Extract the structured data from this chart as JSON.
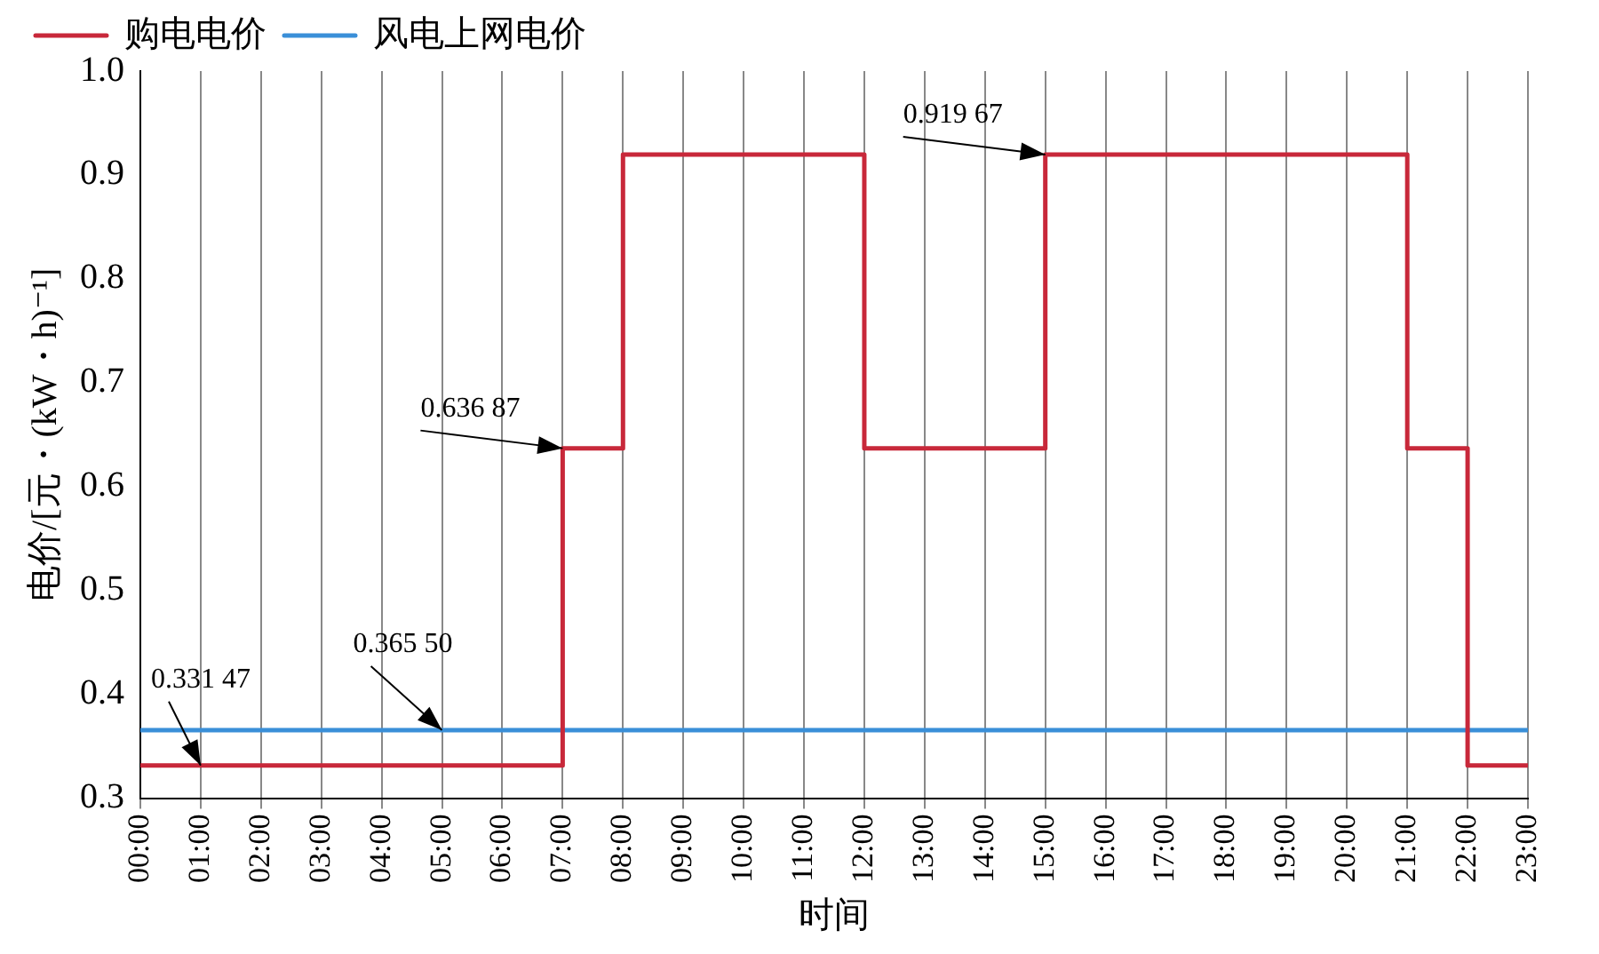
{
  "chart_data": {
    "type": "step",
    "xlabel": "时间",
    "ylabel": "电价/[元・(kW・h)⁻¹]",
    "categories": [
      "00:00",
      "01:00",
      "02:00",
      "03:00",
      "04:00",
      "05:00",
      "06:00",
      "07:00",
      "08:00",
      "09:00",
      "10:00",
      "11:00",
      "12:00",
      "13:00",
      "14:00",
      "15:00",
      "16:00",
      "17:00",
      "18:00",
      "19:00",
      "20:00",
      "21:00",
      "22:00",
      "23:00"
    ],
    "series": [
      {
        "name": "购电电价",
        "color": "#c8283a",
        "values": [
          0.33147,
          0.33147,
          0.33147,
          0.33147,
          0.33147,
          0.33147,
          0.33147,
          0.63687,
          0.91967,
          0.91967,
          0.91967,
          0.91967,
          0.63687,
          0.63687,
          0.63687,
          0.91967,
          0.91967,
          0.91967,
          0.91967,
          0.91967,
          0.91967,
          0.63687,
          0.33147,
          0.33147
        ]
      },
      {
        "name": "风电上网电价",
        "color": "#3a8fd8",
        "values": [
          0.3655,
          0.3655,
          0.3655,
          0.3655,
          0.3655,
          0.3655,
          0.3655,
          0.3655,
          0.3655,
          0.3655,
          0.3655,
          0.3655,
          0.3655,
          0.3655,
          0.3655,
          0.3655,
          0.3655,
          0.3655,
          0.3655,
          0.3655,
          0.3655,
          0.3655,
          0.3655,
          0.3655
        ]
      }
    ],
    "ylim": [
      0.3,
      1.0
    ],
    "yticks": [
      0.3,
      0.4,
      0.5,
      0.6,
      0.7,
      0.8,
      0.9,
      {
        "value": 1.0,
        "label": "1.0"
      }
    ],
    "grid": "x",
    "legend": "top left",
    "marker": "none",
    "line_style": "solid",
    "annotations": [
      {
        "text": "0.331 47",
        "x": "01:00",
        "y": 0.33147
      },
      {
        "text": "0.365 50",
        "x": "05:00",
        "y": 0.3655
      },
      {
        "text": "0.636 87",
        "x": "07:00",
        "y": 0.63687
      },
      {
        "text": "0.919 67",
        "x": "15:00",
        "y": 0.91967
      }
    ]
  }
}
